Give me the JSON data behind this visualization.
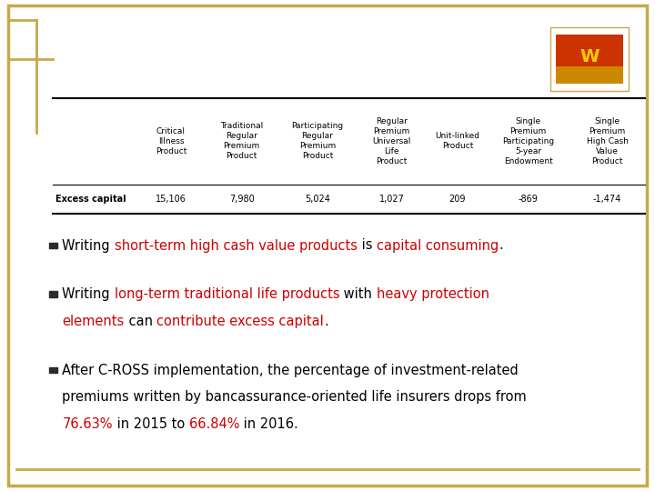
{
  "bg_color": "#ffffff",
  "gold_color": "#c8a84b",
  "table_headers": [
    "Critical\nIllness\nProduct",
    "Traditional\nRegular\nPremium\nProduct",
    "Participating\nRegular\nPremium\nProduct",
    "Regular\nPremium\nUniversal\nLife\nProduct",
    "Unit-linked\nProduct",
    "Single\nPremium\nParticipating\n5-year\nEndowment",
    "Single\nPremium\nHigh Cash\nValue\nProduct"
  ],
  "row_label": "Excess capital",
  "row_values": [
    "15,106",
    "7,980",
    "5,024",
    "1,027",
    "209",
    "-869",
    "-1,474"
  ],
  "font_size_table": 6.5,
  "font_size_bullet": 10.5,
  "bullet1_parts": [
    {
      "text": "Writing ",
      "color": "#000000"
    },
    {
      "text": "short-term high cash value products",
      "color": "#cc0000"
    },
    {
      "text": " is ",
      "color": "#000000"
    },
    {
      "text": "capital consuming",
      "color": "#cc0000"
    },
    {
      "text": ".",
      "color": "#000000"
    }
  ],
  "bullet2_line1_parts": [
    {
      "text": "Writing ",
      "color": "#000000"
    },
    {
      "text": "long-term traditional life products",
      "color": "#cc0000"
    },
    {
      "text": " with ",
      "color": "#000000"
    },
    {
      "text": "heavy protection",
      "color": "#cc0000"
    }
  ],
  "bullet2_line2_parts": [
    {
      "text": "elements",
      "color": "#cc0000"
    },
    {
      "text": " can ",
      "color": "#000000"
    },
    {
      "text": "contribute excess capital",
      "color": "#cc0000"
    },
    {
      "text": ".",
      "color": "#000000"
    }
  ],
  "bullet3_line1": "After C-ROSS implementation, the percentage of investment-related",
  "bullet3_line2": "premiums written by bancassurance-oriented life insurers drops from",
  "bullet3_line3_parts": [
    {
      "text": "76.63%",
      "color": "#cc0000"
    },
    {
      "text": " in 2015 to ",
      "color": "#000000"
    },
    {
      "text": "66.84%",
      "color": "#cc0000"
    },
    {
      "text": " in 2016.",
      "color": "#000000"
    }
  ]
}
